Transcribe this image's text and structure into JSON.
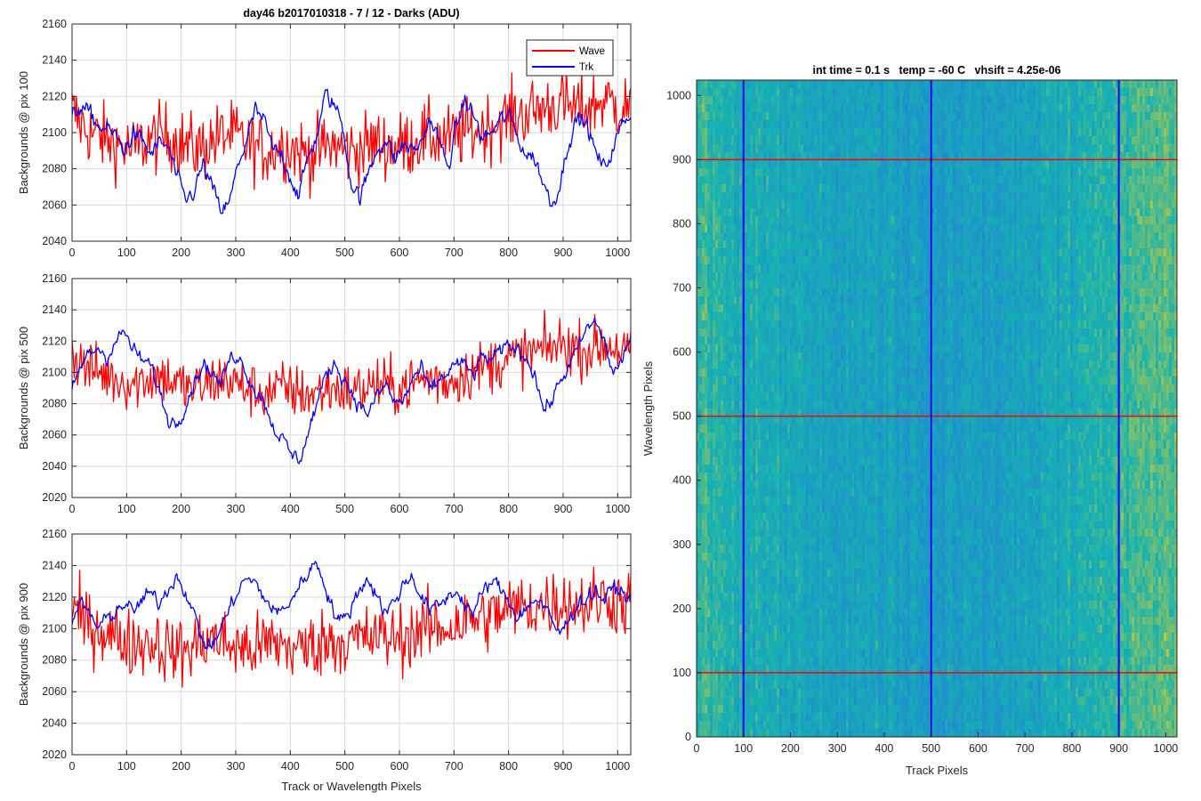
{
  "colors": {
    "wave": "#ff0000",
    "trk": "#0000ff",
    "grid": "#d9d9d9",
    "axis": "#262626",
    "heatmap_low": "#1f8ad2",
    "heatmap_mid": "#17b3b0",
    "heatmap_high": "#c8c83a"
  },
  "chart_data": [
    {
      "type": "line",
      "title": "day46 b2017010318 - 7 / 12 - Darks (ADU)",
      "xlabel": "",
      "ylabel": "Backgrounds @ pix 100",
      "xlim": [
        0,
        1024
      ],
      "ylim": [
        2040,
        2160
      ],
      "xticks": [
        0,
        100,
        200,
        300,
        400,
        500,
        600,
        700,
        800,
        900,
        1000
      ],
      "yticks": [
        2040,
        2060,
        2080,
        2100,
        2120,
        2140,
        2160
      ],
      "grid": true,
      "legend": {
        "placement": "top-right",
        "entries": [
          "Wave",
          "Trk"
        ]
      },
      "series": [
        {
          "name": "Wave",
          "x": [
            0,
            16,
            32,
            48,
            64,
            80,
            96,
            112,
            128,
            144,
            160,
            176,
            192,
            208,
            224,
            240,
            256,
            272,
            288,
            304,
            320,
            336,
            352,
            368,
            384,
            400,
            416,
            432,
            448,
            464,
            480,
            496,
            512,
            528,
            544,
            560,
            576,
            592,
            608,
            624,
            640,
            656,
            672,
            688,
            704,
            720,
            736,
            752,
            768,
            784,
            800,
            816,
            832,
            848,
            864,
            880,
            896,
            912,
            928,
            944,
            960,
            976,
            992,
            1008,
            1024
          ],
          "values": [
            2112,
            2105,
            2100,
            2098,
            2096,
            2094,
            2092,
            2090,
            2094,
            2096,
            2097,
            2098,
            2096,
            2093,
            2091,
            2092,
            2095,
            2098,
            2099,
            2097,
            2094,
            2092,
            2090,
            2091,
            2093,
            2092,
            2090,
            2088,
            2089,
            2092,
            2093,
            2091,
            2090,
            2091,
            2093,
            2094,
            2093,
            2092,
            2093,
            2095,
            2097,
            2098,
            2097,
            2096,
            2098,
            2100,
            2101,
            2102,
            2104,
            2106,
            2108,
            2110,
            2111,
            2112,
            2114,
            2115,
            2116,
            2114,
            2113,
            2114,
            2116,
            2118,
            2116,
            2114,
            2115
          ]
        },
        {
          "name": "Trk",
          "x": [
            0,
            16,
            32,
            48,
            64,
            80,
            96,
            112,
            128,
            144,
            160,
            176,
            192,
            208,
            224,
            240,
            256,
            272,
            288,
            304,
            320,
            336,
            352,
            368,
            384,
            400,
            416,
            432,
            448,
            464,
            480,
            496,
            512,
            528,
            544,
            560,
            576,
            592,
            608,
            624,
            640,
            656,
            672,
            688,
            704,
            720,
            736,
            752,
            768,
            784,
            800,
            816,
            832,
            848,
            864,
            880,
            896,
            912,
            928,
            944,
            960,
            976,
            992,
            1008,
            1024
          ],
          "values": [
            2108,
            2115,
            2110,
            2104,
            2102,
            2098,
            2090,
            2100,
            2095,
            2088,
            2094,
            2092,
            2075,
            2062,
            2068,
            2082,
            2070,
            2057,
            2060,
            2082,
            2096,
            2112,
            2106,
            2090,
            2088,
            2076,
            2065,
            2086,
            2098,
            2120,
            2116,
            2104,
            2072,
            2064,
            2078,
            2092,
            2096,
            2085,
            2094,
            2090,
            2094,
            2108,
            2096,
            2080,
            2102,
            2118,
            2110,
            2096,
            2100,
            2106,
            2110,
            2098,
            2088,
            2086,
            2072,
            2060,
            2074,
            2098,
            2108,
            2104,
            2088,
            2080,
            2092,
            2104,
            2112
          ]
        }
      ]
    },
    {
      "type": "line",
      "title": "",
      "xlabel": "",
      "ylabel": "Backgrounds @ pix 500",
      "xlim": [
        0,
        1024
      ],
      "ylim": [
        2020,
        2160
      ],
      "xticks": [
        0,
        100,
        200,
        300,
        400,
        500,
        600,
        700,
        800,
        900,
        1000
      ],
      "yticks": [
        2020,
        2040,
        2060,
        2080,
        2100,
        2120,
        2140,
        2160
      ],
      "grid": true,
      "series": [
        {
          "name": "",
          "x": [
            0,
            16,
            32,
            48,
            64,
            80,
            96,
            112,
            128,
            144,
            160,
            176,
            192,
            208,
            224,
            240,
            256,
            272,
            288,
            304,
            320,
            336,
            352,
            368,
            384,
            400,
            416,
            432,
            448,
            464,
            480,
            496,
            512,
            528,
            544,
            560,
            576,
            592,
            608,
            624,
            640,
            656,
            672,
            688,
            704,
            720,
            736,
            752,
            768,
            784,
            800,
            816,
            832,
            848,
            864,
            880,
            896,
            912,
            928,
            944,
            960,
            976,
            992,
            1008,
            1024
          ],
          "values": [
            2112,
            2106,
            2102,
            2100,
            2098,
            2096,
            2094,
            2093,
            2095,
            2097,
            2098,
            2096,
            2093,
            2090,
            2089,
            2091,
            2094,
            2096,
            2095,
            2092,
            2090,
            2088,
            2087,
            2088,
            2090,
            2089,
            2087,
            2086,
            2087,
            2089,
            2090,
            2089,
            2088,
            2089,
            2091,
            2092,
            2091,
            2090,
            2091,
            2093,
            2095,
            2096,
            2095,
            2094,
            2096,
            2099,
            2101,
            2103,
            2105,
            2107,
            2108,
            2110,
            2112,
            2113,
            2114,
            2116,
            2118,
            2117,
            2115,
            2114,
            2116,
            2118,
            2117,
            2114,
            2112
          ]
        },
        {
          "name": "",
          "x": [
            0,
            16,
            32,
            48,
            64,
            80,
            96,
            112,
            128,
            144,
            160,
            176,
            192,
            208,
            224,
            240,
            256,
            272,
            288,
            304,
            320,
            336,
            352,
            368,
            384,
            400,
            416,
            432,
            448,
            464,
            480,
            496,
            512,
            528,
            544,
            560,
            576,
            592,
            608,
            624,
            640,
            656,
            672,
            688,
            704,
            720,
            736,
            752,
            768,
            784,
            800,
            816,
            832,
            848,
            864,
            880,
            896,
            912,
            928,
            944,
            960,
            976,
            992,
            1008,
            1024
          ],
          "values": [
            2088,
            2104,
            2112,
            2116,
            2110,
            2120,
            2126,
            2114,
            2108,
            2104,
            2088,
            2070,
            2068,
            2080,
            2094,
            2106,
            2100,
            2092,
            2108,
            2112,
            2100,
            2088,
            2082,
            2066,
            2058,
            2048,
            2044,
            2060,
            2080,
            2096,
            2106,
            2098,
            2088,
            2078,
            2074,
            2086,
            2092,
            2080,
            2082,
            2096,
            2102,
            2088,
            2094,
            2100,
            2106,
            2104,
            2098,
            2110,
            2108,
            2112,
            2118,
            2114,
            2110,
            2100,
            2076,
            2082,
            2096,
            2104,
            2116,
            2128,
            2132,
            2120,
            2098,
            2108,
            2124
          ]
        }
      ]
    },
    {
      "type": "line",
      "title": "",
      "xlabel": "Track or Wavelength Pixels",
      "ylabel": "Backgrounds @ pix 900",
      "xlim": [
        0,
        1024
      ],
      "ylim": [
        2020,
        2160
      ],
      "xticks": [
        0,
        100,
        200,
        300,
        400,
        500,
        600,
        700,
        800,
        900,
        1000
      ],
      "yticks": [
        2020,
        2040,
        2060,
        2080,
        2100,
        2120,
        2140,
        2160
      ],
      "grid": true,
      "series": [
        {
          "name": "",
          "x": [
            0,
            16,
            32,
            48,
            64,
            80,
            96,
            112,
            128,
            144,
            160,
            176,
            192,
            208,
            224,
            240,
            256,
            272,
            288,
            304,
            320,
            336,
            352,
            368,
            384,
            400,
            416,
            432,
            448,
            464,
            480,
            496,
            512,
            528,
            544,
            560,
            576,
            592,
            608,
            624,
            640,
            656,
            672,
            688,
            704,
            720,
            736,
            752,
            768,
            784,
            800,
            816,
            832,
            848,
            864,
            880,
            896,
            912,
            928,
            944,
            960,
            976,
            992,
            1008,
            1024
          ],
          "values": [
            2112,
            2106,
            2102,
            2100,
            2098,
            2095,
            2092,
            2090,
            2091,
            2092,
            2090,
            2087,
            2085,
            2086,
            2089,
            2092,
            2094,
            2092,
            2090,
            2088,
            2087,
            2088,
            2090,
            2091,
            2090,
            2088,
            2087,
            2088,
            2090,
            2092,
            2093,
            2092,
            2092,
            2093,
            2094,
            2095,
            2094,
            2094,
            2095,
            2097,
            2099,
            2100,
            2100,
            2101,
            2103,
            2105,
            2106,
            2107,
            2108,
            2110,
            2112,
            2113,
            2114,
            2114,
            2115,
            2116,
            2117,
            2116,
            2115,
            2116,
            2118,
            2119,
            2118,
            2116,
            2115
          ]
        },
        {
          "name": "",
          "x": [
            0,
            16,
            32,
            48,
            64,
            80,
            96,
            112,
            128,
            144,
            160,
            176,
            192,
            208,
            224,
            240,
            256,
            272,
            288,
            304,
            320,
            336,
            352,
            368,
            384,
            400,
            416,
            432,
            448,
            464,
            480,
            496,
            512,
            528,
            544,
            560,
            576,
            592,
            608,
            624,
            640,
            656,
            672,
            688,
            704,
            720,
            736,
            752,
            768,
            784,
            800,
            816,
            832,
            848,
            864,
            880,
            896,
            912,
            928,
            944,
            960,
            976,
            992,
            1008,
            1024
          ],
          "values": [
            2106,
            2116,
            2110,
            2100,
            2106,
            2112,
            2116,
            2110,
            2118,
            2122,
            2116,
            2126,
            2134,
            2124,
            2108,
            2092,
            2088,
            2100,
            2112,
            2124,
            2132,
            2128,
            2120,
            2112,
            2110,
            2118,
            2126,
            2136,
            2142,
            2128,
            2110,
            2104,
            2114,
            2126,
            2132,
            2120,
            2110,
            2118,
            2128,
            2134,
            2120,
            2112,
            2114,
            2120,
            2124,
            2116,
            2110,
            2122,
            2130,
            2126,
            2118,
            2108,
            2112,
            2120,
            2114,
            2104,
            2096,
            2108,
            2116,
            2120,
            2124,
            2118,
            2126,
            2124,
            2116
          ]
        }
      ]
    },
    {
      "type": "heatmap",
      "title": "int time = 0.1 s   temp = -60 C   vhsift = 4.25e-06",
      "xlabel": "Track Pixels",
      "ylabel": "Wavelength Pixels",
      "xlim": [
        0,
        1024
      ],
      "ylim": [
        0,
        1024
      ],
      "xticks": [
        0,
        100,
        200,
        300,
        400,
        500,
        600,
        700,
        800,
        900,
        1000
      ],
      "yticks": [
        0,
        100,
        200,
        300,
        400,
        500,
        600,
        700,
        800,
        900,
        1000
      ],
      "grid": false,
      "column_profile": {
        "x": [
          0,
          64,
          128,
          192,
          256,
          320,
          384,
          448,
          512,
          576,
          640,
          704,
          768,
          832,
          896,
          960,
          1024
        ],
        "level": [
          0.62,
          0.5,
          0.42,
          0.38,
          0.34,
          0.3,
          0.28,
          0.26,
          0.25,
          0.26,
          0.28,
          0.3,
          0.36,
          0.46,
          0.56,
          0.66,
          0.72
        ]
      },
      "marker_lines": {
        "vertical_x": [
          100,
          500,
          900
        ],
        "horizontal_y": [
          100,
          500,
          900
        ]
      }
    }
  ]
}
